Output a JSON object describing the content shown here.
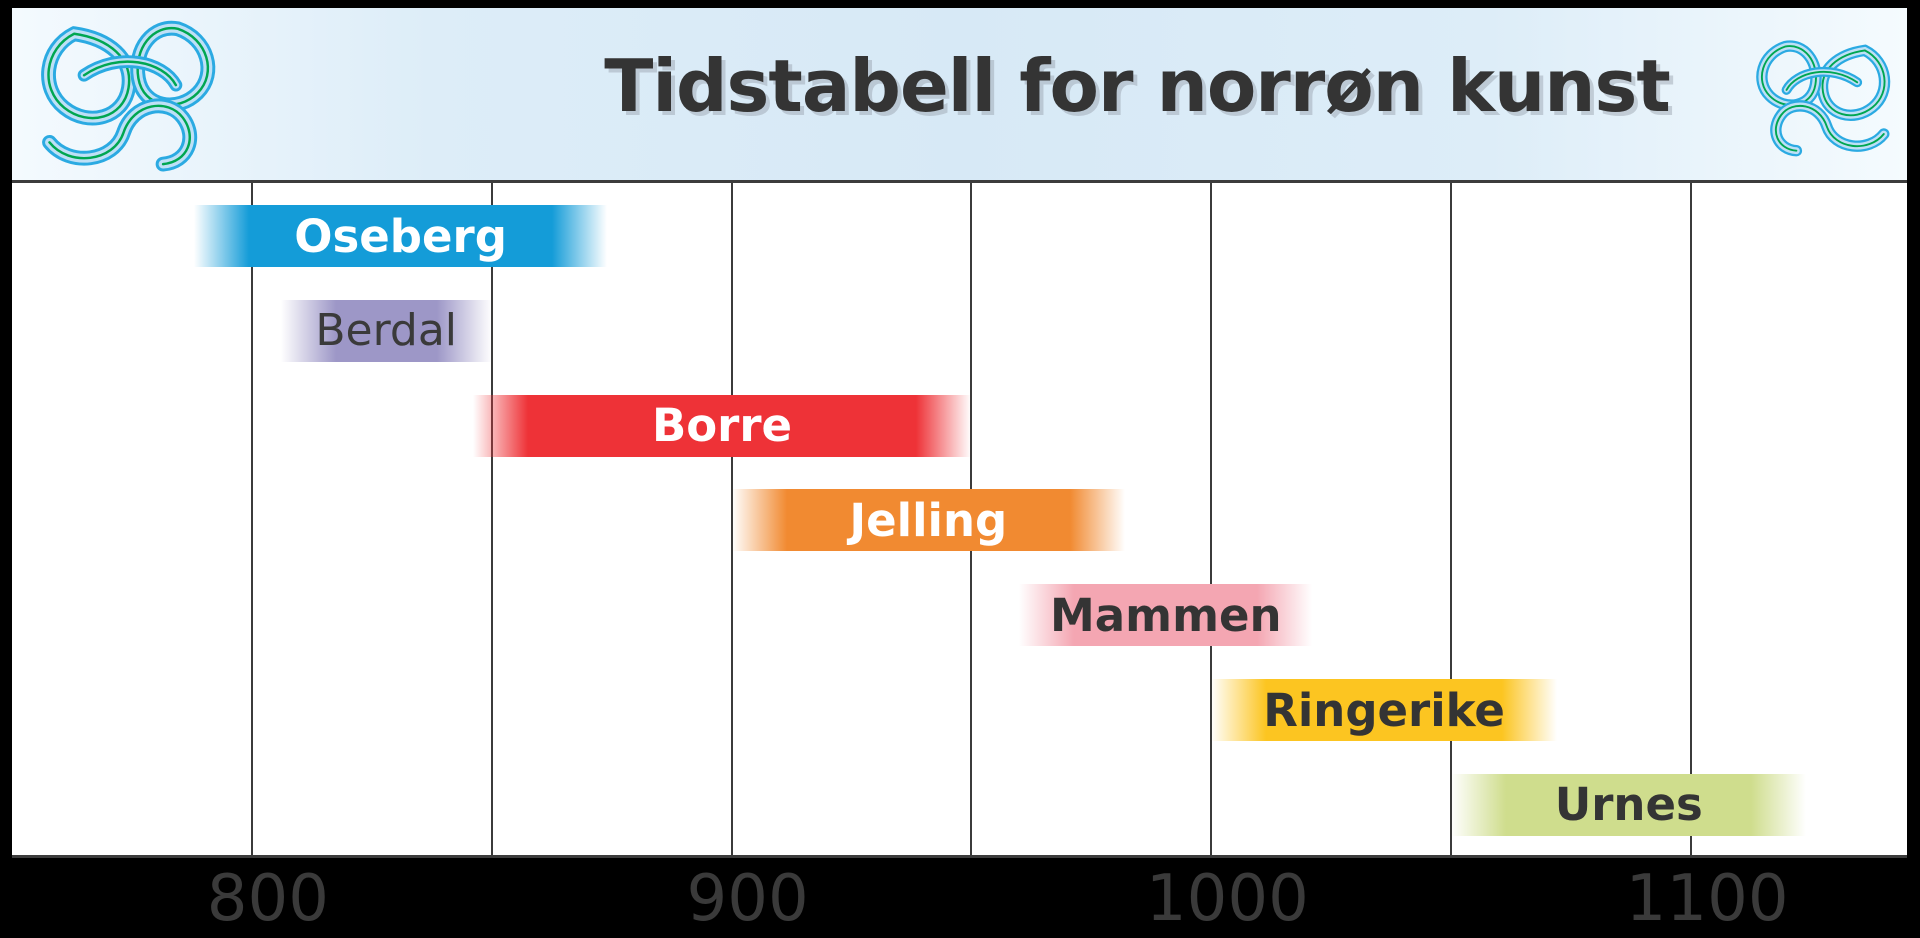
{
  "header": {
    "title": "Tidstabell for norrøn kunst",
    "ornament": "norse-knot-icon",
    "ornament_colors": {
      "outline": "#2baae2",
      "fill": "#bee0f6",
      "accent": "#00a651"
    }
  },
  "chart_data": {
    "type": "bar",
    "subtype": "horizontal-timeline",
    "title": "Tidstabell for norrøn kunst",
    "xlabel": "",
    "ylabel": "",
    "axis": {
      "min_year": 750,
      "max_year": 1145,
      "ticks": [
        800,
        900,
        1000,
        1100
      ],
      "tick_labels": [
        "800",
        "900",
        "1000",
        "1100"
      ],
      "gridlines": [
        800,
        850,
        900,
        950,
        1000,
        1050,
        1100
      ],
      "grid": true,
      "tick_color": "#3a3a3a",
      "gridline_color": "#3b3b3b"
    },
    "legend": false,
    "series": [
      {
        "name": "Oseberg",
        "start": 788,
        "end": 874,
        "color": "#149cd8",
        "label_color": "#ffffff",
        "bold": true
      },
      {
        "name": "Berdal",
        "start": 806,
        "end": 850,
        "color": "#9d97c7",
        "label_color": "#3a3a3a",
        "bold": false
      },
      {
        "name": "Borre",
        "start": 846,
        "end": 950,
        "color": "#ee3237",
        "label_color": "#ffffff",
        "bold": true
      },
      {
        "name": "Jelling",
        "start": 900,
        "end": 982,
        "color": "#f18a31",
        "label_color": "#ffffff",
        "bold": true
      },
      {
        "name": "Mammen",
        "start": 960,
        "end": 1021,
        "color": "#f4a6b2",
        "label_color": "#343434",
        "bold": true
      },
      {
        "name": "Ringerike",
        "start": 1000,
        "end": 1072,
        "color": "#fcc521",
        "label_color": "#343434",
        "bold": true
      },
      {
        "name": "Urnes",
        "start": 1050,
        "end": 1124,
        "color": "#cfdd8d",
        "label_color": "#343434",
        "bold": true
      }
    ]
  }
}
